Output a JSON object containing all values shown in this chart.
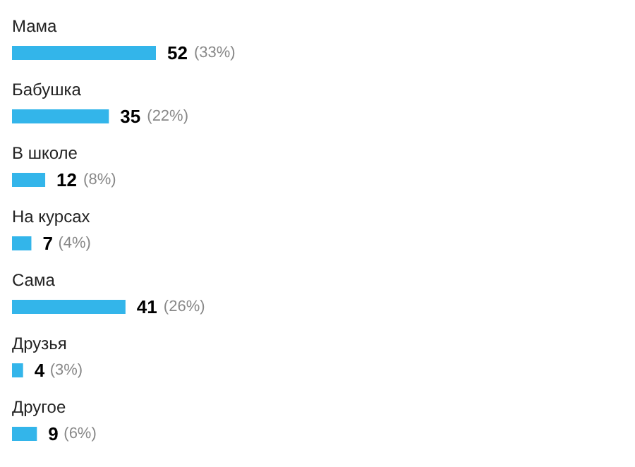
{
  "chart_data": {
    "type": "bar",
    "orientation": "horizontal",
    "categories": [
      "Мама",
      "Бабушка",
      "В школе",
      "На курсах",
      "Сама",
      "Друзья",
      "Другое"
    ],
    "values": [
      52,
      35,
      12,
      7,
      41,
      4,
      9
    ],
    "value_labels": [
      "52 (33%)",
      "35 (22%)",
      "12 (8%)",
      "7 (4%)",
      "41 (26%)",
      "4 (3%)",
      "9 (6%)"
    ],
    "color": "#33b5ea"
  }
}
